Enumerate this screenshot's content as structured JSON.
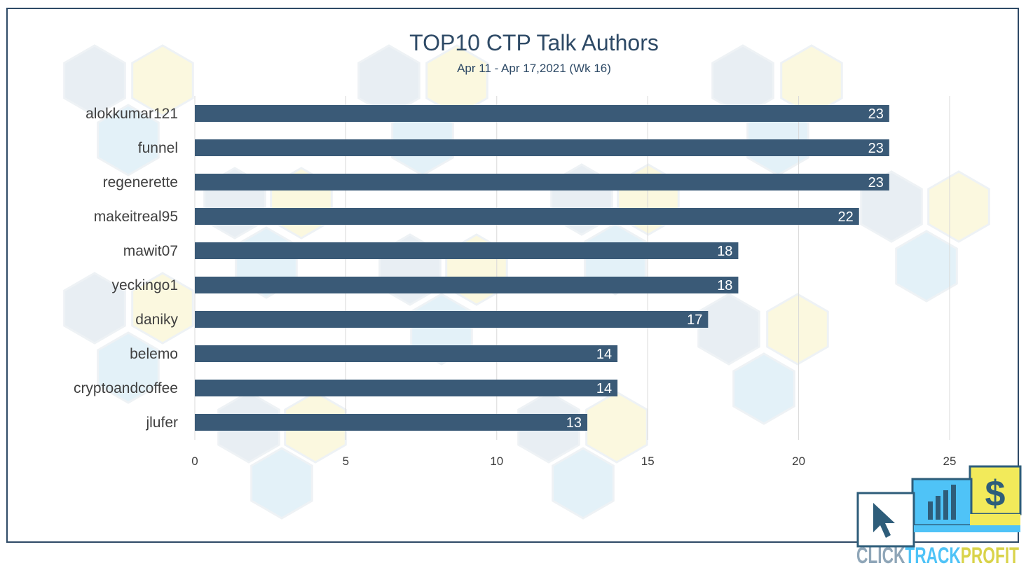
{
  "chart_data": {
    "type": "bar",
    "orientation": "horizontal",
    "title": "TOP10 CTP Talk Authors",
    "subtitle": "Apr 11 - Apr 17,2021 (Wk 16)",
    "categories": [
      "alokkumar121",
      "funnel",
      "regenerette",
      "makeitreal95",
      "mawit07",
      "yeckingo1",
      "daniky",
      "belemo",
      "cryptoandcoffee",
      "jlufer"
    ],
    "values": [
      23,
      23,
      23,
      22,
      18,
      18,
      17,
      14,
      14,
      13
    ],
    "xlim": [
      0,
      25
    ],
    "xticks": [
      0,
      5,
      10,
      15,
      20,
      25
    ],
    "grid": true,
    "bar_color": "#3a5a77"
  },
  "logo": {
    "text_parts": [
      "CLICK",
      "TRACK",
      "PROFIT"
    ],
    "dollar_glyph": "$"
  },
  "colors": {
    "title": "#2e4a66",
    "frame": "#2e4a66",
    "logo_blue": "#4fc3f7",
    "logo_yellow": "#f2ea5a",
    "logo_dark": "#2e5d7a"
  }
}
